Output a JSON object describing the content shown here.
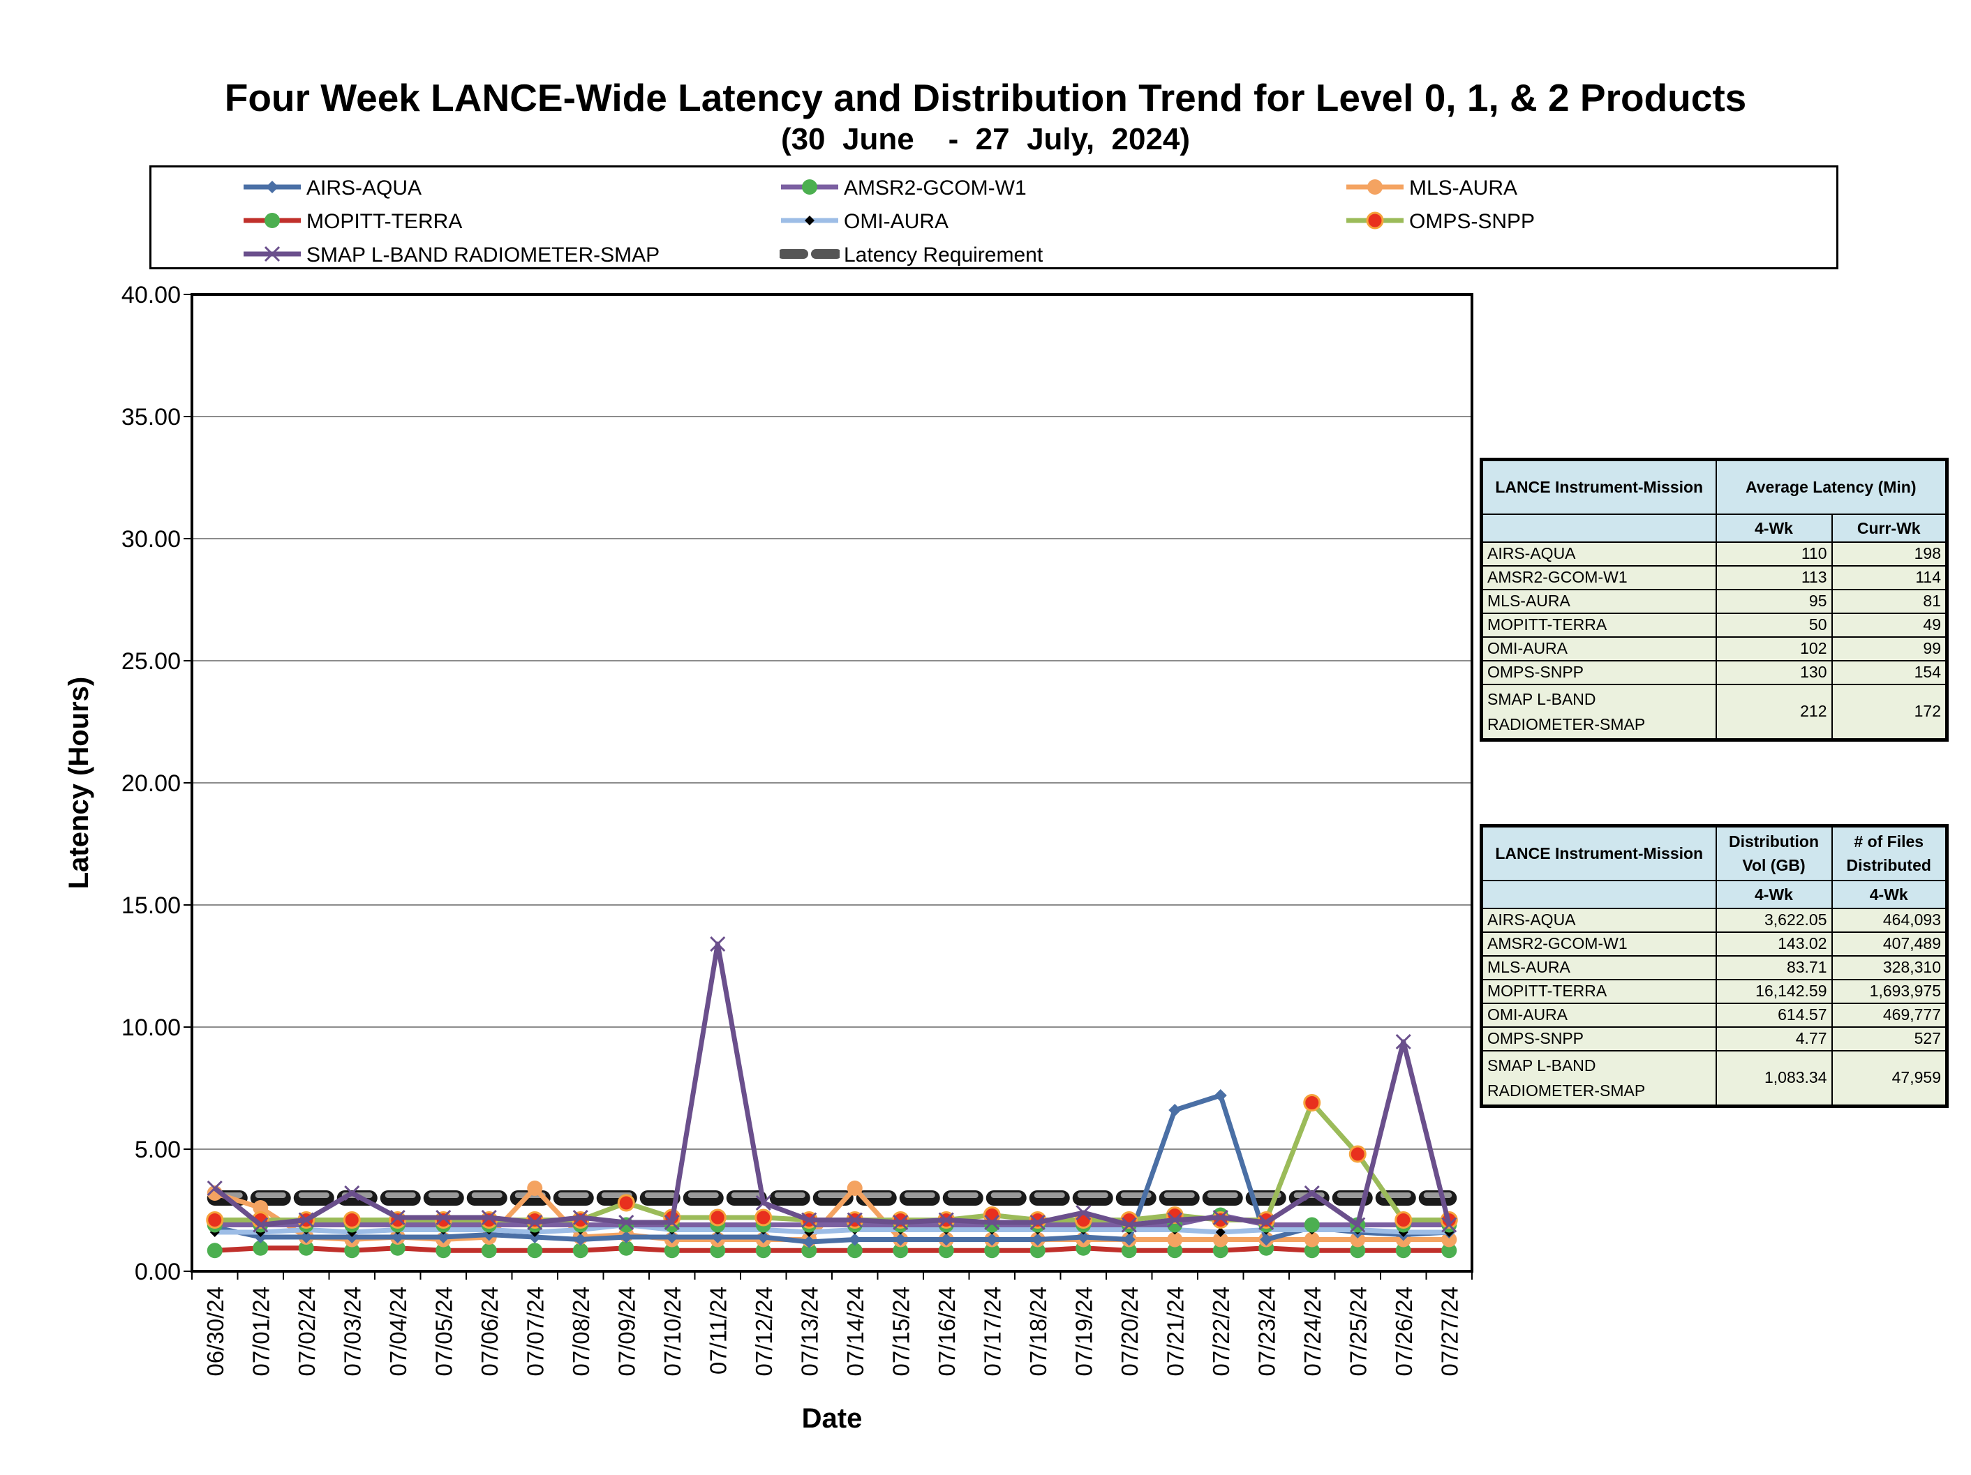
{
  "title": "Four Week LANCE-Wide Latency and Distribution Trend for Level 0, 1, & 2 Products",
  "subtitle": "(30  June    -  27  July,  2024)",
  "legend": [
    {
      "name": "AIRS-AQUA",
      "color": "#4a6fa5",
      "marker": "diamond"
    },
    {
      "name": "AMSR2-GCOM-W1",
      "color": "#7b5fa1",
      "marker": "circle-green"
    },
    {
      "name": "MLS-AURA",
      "color": "#f4a361",
      "marker": "circle-orange"
    },
    {
      "name": "MOPITT-TERRA",
      "color": "#c0302b",
      "marker": "circle-green"
    },
    {
      "name": "OMI-AURA",
      "color": "#9dbde6",
      "marker": "diamond-black"
    },
    {
      "name": "OMPS-SNPP",
      "color": "#9bbb59",
      "marker": "circle-red"
    },
    {
      "name": "SMAP L-BAND RADIOMETER-SMAP",
      "color": "#6a4f8c",
      "marker": "x"
    },
    {
      "name": "Latency Requirement",
      "color": "#000000",
      "marker": "dash"
    }
  ],
  "chart_data": {
    "type": "line",
    "xlabel": "Date",
    "ylabel": "Latency (Hours)",
    "ylim": [
      0,
      40
    ],
    "yticks": [
      "0.00",
      "5.00",
      "10.00",
      "15.00",
      "20.00",
      "25.00",
      "30.00",
      "35.00",
      "40.00"
    ],
    "grid": true,
    "categories": [
      "06/30/24",
      "07/01/24",
      "07/02/24",
      "07/03/24",
      "07/04/24",
      "07/05/24",
      "07/06/24",
      "07/07/24",
      "07/08/24",
      "07/09/24",
      "07/10/24",
      "07/11/24",
      "07/12/24",
      "07/13/24",
      "07/14/24",
      "07/15/24",
      "07/16/24",
      "07/17/24",
      "07/18/24",
      "07/19/24",
      "07/20/24",
      "07/21/24",
      "07/22/24",
      "07/23/24",
      "07/24/24",
      "07/25/24",
      "07/26/24",
      "07/27/24"
    ],
    "series": [
      {
        "name": "AIRS-AQUA",
        "color": "#4a6fa5",
        "marker": "diamond",
        "values": [
          1.8,
          1.4,
          1.4,
          1.4,
          1.4,
          1.4,
          1.5,
          1.4,
          1.3,
          1.4,
          1.4,
          1.4,
          1.4,
          1.2,
          1.3,
          1.3,
          1.3,
          1.3,
          1.3,
          1.4,
          1.3,
          6.6,
          7.2,
          1.3,
          1.8,
          1.6,
          1.5,
          1.6
        ]
      },
      {
        "name": "AMSR2-GCOM-W1",
        "color": "#7b5fa1",
        "marker": "circle-green",
        "values": [
          1.9,
          1.9,
          1.9,
          1.9,
          1.9,
          1.9,
          1.9,
          1.9,
          1.9,
          1.9,
          1.9,
          1.9,
          1.9,
          1.9,
          1.9,
          1.9,
          1.9,
          1.9,
          1.9,
          1.9,
          1.9,
          1.9,
          2.3,
          1.9,
          1.9,
          1.9,
          1.9,
          1.9
        ]
      },
      {
        "name": "MLS-AURA",
        "color": "#f4a361",
        "marker": "circle-orange",
        "values": [
          3.2,
          2.6,
          1.4,
          1.3,
          1.4,
          1.3,
          1.4,
          3.4,
          1.4,
          1.5,
          1.3,
          1.3,
          1.3,
          1.3,
          3.4,
          1.3,
          1.3,
          1.3,
          1.3,
          1.3,
          1.3,
          1.3,
          1.3,
          1.3,
          1.3,
          1.3,
          1.3,
          1.3
        ]
      },
      {
        "name": "MOPITT-TERRA",
        "color": "#c0302b",
        "marker": "circle-green",
        "values": [
          0.85,
          0.95,
          0.95,
          0.85,
          0.95,
          0.85,
          0.85,
          0.85,
          0.85,
          0.95,
          0.85,
          0.85,
          0.85,
          0.85,
          0.85,
          0.85,
          0.85,
          0.85,
          0.85,
          0.95,
          0.85,
          0.85,
          0.85,
          0.95,
          0.85,
          0.85,
          0.85,
          0.85
        ]
      },
      {
        "name": "OMI-AURA",
        "color": "#9dbde6",
        "marker": "diamond-black",
        "values": [
          1.6,
          1.6,
          1.7,
          1.6,
          1.7,
          1.7,
          1.7,
          1.6,
          1.7,
          1.9,
          1.7,
          1.7,
          1.7,
          1.6,
          1.7,
          1.7,
          1.7,
          1.7,
          1.7,
          1.7,
          1.7,
          1.7,
          1.6,
          1.7,
          1.7,
          1.7,
          1.6,
          1.6
        ]
      },
      {
        "name": "OMPS-SNPP",
        "color": "#9bbb59",
        "marker": "circle-red",
        "values": [
          2.1,
          2.1,
          2.1,
          2.1,
          2.1,
          2.1,
          2.1,
          2.1,
          2.1,
          2.8,
          2.2,
          2.2,
          2.2,
          2.1,
          2.1,
          2.1,
          2.1,
          2.3,
          2.1,
          2.1,
          2.1,
          2.3,
          2.1,
          2.1,
          6.9,
          4.8,
          2.1,
          2.1
        ]
      },
      {
        "name": "SMAP L-BAND RADIOMETER-SMAP",
        "color": "#6a4f8c",
        "marker": "x",
        "values": [
          3.4,
          1.9,
          2.1,
          3.2,
          2.2,
          2.2,
          2.2,
          2.0,
          2.2,
          2.0,
          2.0,
          13.4,
          2.8,
          2.1,
          2.1,
          2.0,
          2.1,
          2.0,
          2.0,
          2.4,
          1.9,
          2.1,
          2.2,
          2.0,
          3.2,
          1.9,
          9.4,
          1.9
        ]
      },
      {
        "name": "Latency Requirement",
        "color": "#000000",
        "marker": "dash",
        "values": [
          3,
          3,
          3,
          3,
          3,
          3,
          3,
          3,
          3,
          3,
          3,
          3,
          3,
          3,
          3,
          3,
          3,
          3,
          3,
          3,
          3,
          3,
          3,
          3,
          3,
          3,
          3,
          3
        ]
      }
    ]
  },
  "latency_table": {
    "header": [
      "LANCE Instrument-Mission",
      "Average Latency (Min)"
    ],
    "subheader": [
      "",
      "4-Wk",
      "Curr-Wk"
    ],
    "rows": [
      {
        "name": "AIRS-AQUA",
        "four_wk": "110",
        "curr_wk": "198"
      },
      {
        "name": "AMSR2-GCOM-W1",
        "four_wk": "113",
        "curr_wk": "114"
      },
      {
        "name": "MLS-AURA",
        "four_wk": "95",
        "curr_wk": "81"
      },
      {
        "name": "MOPITT-TERRA",
        "four_wk": "50",
        "curr_wk": "49"
      },
      {
        "name": "OMI-AURA",
        "four_wk": "102",
        "curr_wk": "99"
      },
      {
        "name": "OMPS-SNPP",
        "four_wk": "130",
        "curr_wk": "154"
      },
      {
        "name": "SMAP L-BAND RADIOMETER-SMAP",
        "four_wk": "212",
        "curr_wk": "172"
      }
    ]
  },
  "distribution_table": {
    "header": [
      "LANCE Instrument-Mission",
      "Distribution Vol (GB)",
      "# of Files Distributed"
    ],
    "subheader": [
      "",
      "4-Wk",
      "4-Wk"
    ],
    "rows": [
      {
        "name": "AIRS-AQUA",
        "vol": "3,622.05",
        "files": "464,093"
      },
      {
        "name": "AMSR2-GCOM-W1",
        "vol": "143.02",
        "files": "407,489"
      },
      {
        "name": "MLS-AURA",
        "vol": "83.71",
        "files": "328,310"
      },
      {
        "name": "MOPITT-TERRA",
        "vol": "16,142.59",
        "files": "1,693,975"
      },
      {
        "name": "OMI-AURA",
        "vol": "614.57",
        "files": "469,777"
      },
      {
        "name": "OMPS-SNPP",
        "vol": "4.77",
        "files": "527"
      },
      {
        "name": "SMAP L-BAND RADIOMETER-SMAP",
        "vol": "1,083.34",
        "files": "47,959"
      }
    ]
  }
}
